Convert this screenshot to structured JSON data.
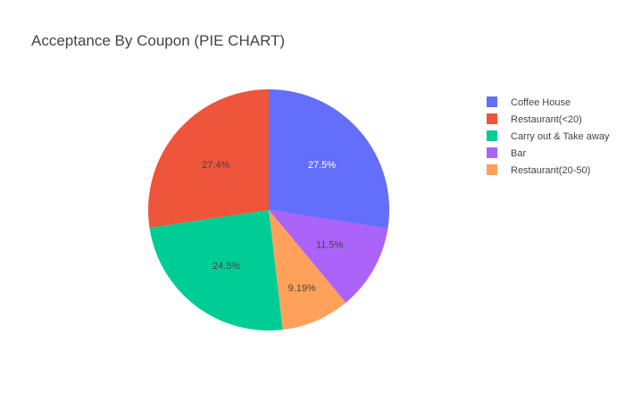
{
  "chart_data": {
    "type": "pie",
    "title": "Acceptance By Coupon (PIE CHART)",
    "slices": [
      {
        "label": "Coffee House",
        "value": 27.5,
        "text": "27.5%",
        "color": "#636efa",
        "text_color": "#ffffff"
      },
      {
        "label": "Restaurant(<20)",
        "value": 27.4,
        "text": "27.4%",
        "color": "#ef553b",
        "text_color": "#444444"
      },
      {
        "label": "Carry out & Take away",
        "value": 24.5,
        "text": "24.5%",
        "color": "#00cc96",
        "text_color": "#444444"
      },
      {
        "label": "Bar",
        "value": 11.5,
        "text": "11.5%",
        "color": "#ab63fa",
        "text_color": "#444444"
      },
      {
        "label": "Restaurant(20-50)",
        "value": 9.19,
        "text": "9.19%",
        "color": "#ffa15a",
        "text_color": "#444444"
      }
    ],
    "slice_order": [
      0,
      3,
      4,
      2,
      1
    ],
    "direction": "clockwise",
    "start_angle_deg": 0,
    "legend_position": "top-right"
  }
}
